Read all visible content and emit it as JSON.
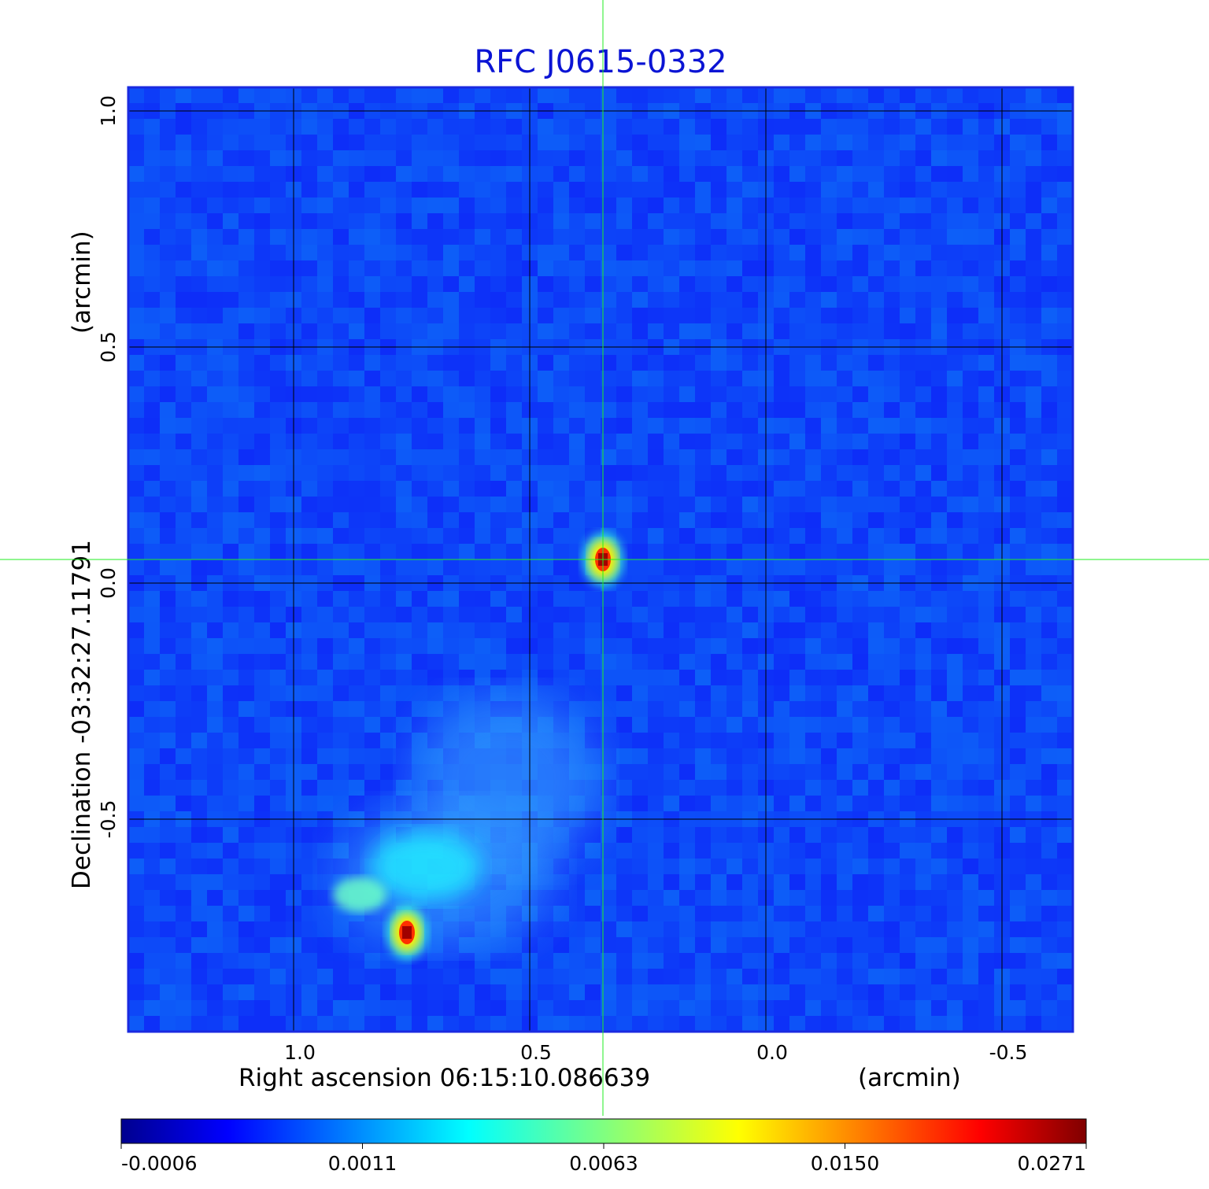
{
  "chart_data": {
    "type": "heatmap",
    "title": "RFC J0615-0332",
    "xlabel": "Right ascension  06:15:10.086639",
    "xunit": "(arcmin)",
    "ylabel": "Declination  -03:32:27.11791",
    "yunit": "(arcmin)",
    "xlim": [
      1.35,
      -0.65
    ],
    "ylim": [
      -0.95,
      1.05
    ],
    "x_ticks": [
      {
        "value": 1.0,
        "label": "1.0"
      },
      {
        "value": 0.5,
        "label": "0.5"
      },
      {
        "value": 0.0,
        "label": "0.0"
      },
      {
        "value": -0.5,
        "label": "-0.5"
      }
    ],
    "y_ticks": [
      {
        "value": 1.0,
        "label": "1.0"
      },
      {
        "value": 0.5,
        "label": "0.5"
      },
      {
        "value": 0.0,
        "label": "0.0"
      },
      {
        "value": -0.5,
        "label": "-0.5"
      }
    ],
    "grid": true,
    "crosshair": {
      "x": 0.345,
      "y": 0.05
    },
    "colormap": "jet",
    "colorbar": {
      "placement": "bottom",
      "tick_labels": [
        "-0.0006",
        "0.0011",
        "0.0063",
        "0.0150",
        "0.0271"
      ]
    },
    "sources": [
      {
        "x": 0.345,
        "y": 0.05,
        "peak": 0.0271
      },
      {
        "x": 0.76,
        "y": -0.74,
        "peak": 0.0271
      },
      {
        "x": 0.86,
        "y": -0.66,
        "peak": 0.0063
      }
    ],
    "extended_emission": [
      {
        "x": 0.68,
        "y": -0.62,
        "level": 0.0011
      },
      {
        "x": 0.55,
        "y": -0.42,
        "level": 0.0011
      }
    ]
  },
  "colors": {
    "title": "#0b14d4",
    "crosshair": "#22ee22",
    "frame": "#1a2ae0",
    "grid": "#000000"
  }
}
